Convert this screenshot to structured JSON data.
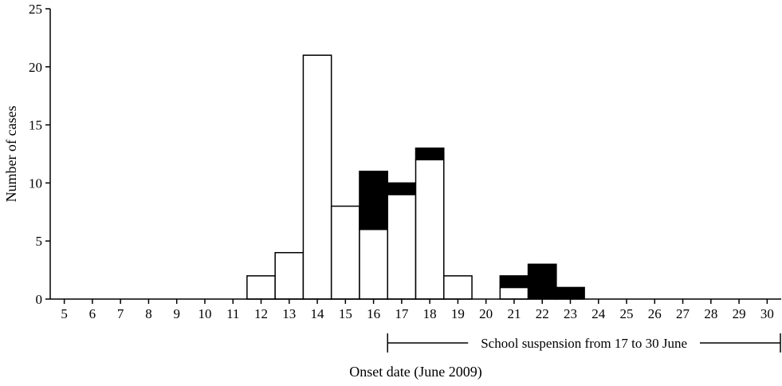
{
  "chart_data": {
    "type": "bar",
    "stacked": true,
    "xlabel": "Onset date (June 2009)",
    "ylabel": "Number of cases",
    "ylim": [
      0,
      25
    ],
    "yticks": [
      0,
      5,
      10,
      15,
      20,
      25
    ],
    "categories": [
      "5",
      "6",
      "7",
      "8",
      "9",
      "10",
      "11",
      "12",
      "13",
      "14",
      "15",
      "16",
      "17",
      "18",
      "19",
      "20",
      "21",
      "22",
      "23",
      "24",
      "25",
      "26",
      "27",
      "28",
      "29",
      "30"
    ],
    "series": [
      {
        "fill": "#ffffff",
        "values": [
          0,
          0,
          0,
          0,
          0,
          0,
          0,
          2,
          4,
          21,
          8,
          6,
          9,
          12,
          2,
          0,
          1,
          0,
          0,
          0,
          0,
          0,
          0,
          0,
          0,
          0
        ]
      },
      {
        "fill": "#000000",
        "values": [
          0,
          0,
          0,
          0,
          0,
          0,
          0,
          0,
          0,
          0,
          0,
          5,
          1,
          1,
          0,
          0,
          1,
          3,
          1,
          0,
          0,
          0,
          0,
          0,
          0,
          0
        ]
      }
    ],
    "annotation": {
      "text": "School suspension from 17 to 30 June",
      "from": "17",
      "to": "30"
    },
    "grid": false,
    "legend": "none"
  }
}
